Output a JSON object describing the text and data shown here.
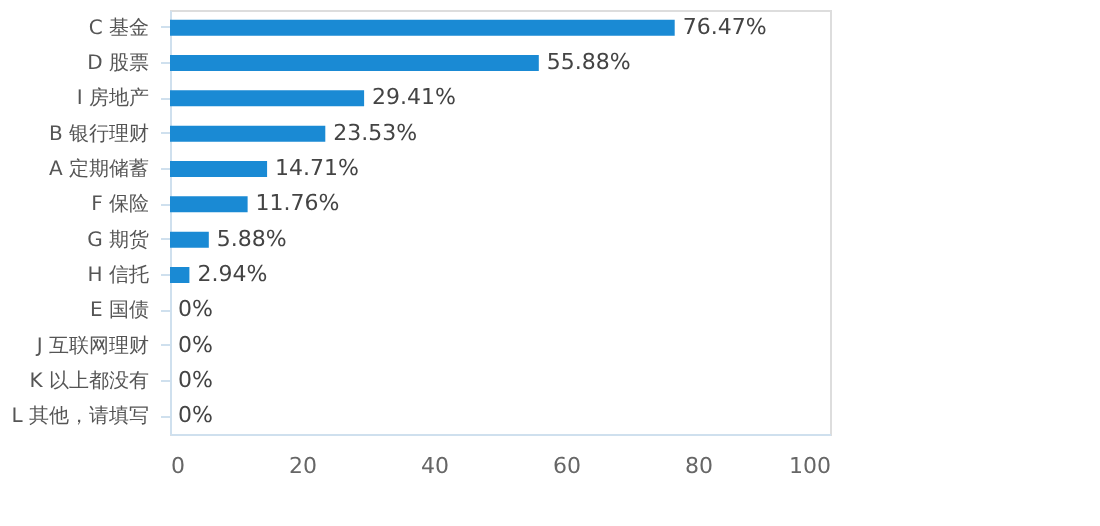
{
  "chart_data": {
    "type": "bar",
    "orientation": "horizontal",
    "categories": [
      "C 基金",
      "D 股票",
      "I 房地产",
      "B 银行理财",
      "A 定期储蓄",
      "F 保险",
      "G 期货",
      "H 信托",
      "E 国债",
      "J 互联网理财",
      "K 以上都没有",
      "L 其他，请填写"
    ],
    "values": [
      76.47,
      55.88,
      29.41,
      23.53,
      14.71,
      11.76,
      5.88,
      2.94,
      0,
      0,
      0,
      0
    ],
    "value_labels": [
      "76.47%",
      "55.88%",
      "29.41%",
      "23.53%",
      "14.71%",
      "11.76%",
      "5.88%",
      "2.94%",
      "0%",
      "0%",
      "0%",
      "0%"
    ],
    "color": "#1a8ad4",
    "xlim": [
      0,
      100
    ],
    "xticks": [
      0,
      20,
      40,
      60,
      80,
      100
    ],
    "grid": false
  }
}
